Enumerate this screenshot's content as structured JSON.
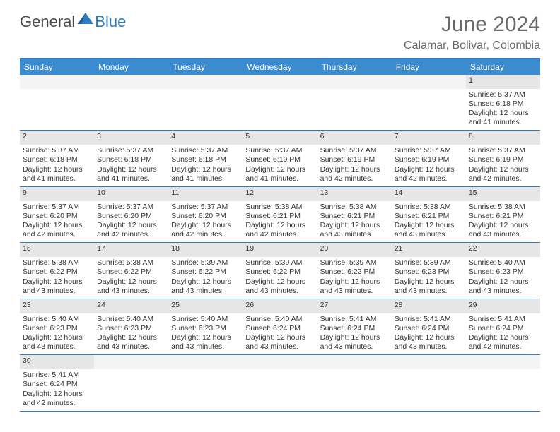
{
  "logo": {
    "part1": "General",
    "part2": "Blue",
    "tri_color": "#2f7cc0"
  },
  "title": "June 2024",
  "location": "Calamar, Bolivar, Colombia",
  "colors": {
    "header_bar": "#3a8bd0",
    "border": "#2f7cc0",
    "day_number_bg": "#e6e6e6",
    "text_muted": "#6a6a6a"
  },
  "weekdays": [
    "Sunday",
    "Monday",
    "Tuesday",
    "Wednesday",
    "Thursday",
    "Friday",
    "Saturday"
  ],
  "weeks": [
    [
      {
        "n": "",
        "sr": "",
        "ss": "",
        "dl": ""
      },
      {
        "n": "",
        "sr": "",
        "ss": "",
        "dl": ""
      },
      {
        "n": "",
        "sr": "",
        "ss": "",
        "dl": ""
      },
      {
        "n": "",
        "sr": "",
        "ss": "",
        "dl": ""
      },
      {
        "n": "",
        "sr": "",
        "ss": "",
        "dl": ""
      },
      {
        "n": "",
        "sr": "",
        "ss": "",
        "dl": ""
      },
      {
        "n": "1",
        "sr": "Sunrise: 5:37 AM",
        "ss": "Sunset: 6:18 PM",
        "dl": "Daylight: 12 hours and 41 minutes."
      }
    ],
    [
      {
        "n": "2",
        "sr": "Sunrise: 5:37 AM",
        "ss": "Sunset: 6:18 PM",
        "dl": "Daylight: 12 hours and 41 minutes."
      },
      {
        "n": "3",
        "sr": "Sunrise: 5:37 AM",
        "ss": "Sunset: 6:18 PM",
        "dl": "Daylight: 12 hours and 41 minutes."
      },
      {
        "n": "4",
        "sr": "Sunrise: 5:37 AM",
        "ss": "Sunset: 6:18 PM",
        "dl": "Daylight: 12 hours and 41 minutes."
      },
      {
        "n": "5",
        "sr": "Sunrise: 5:37 AM",
        "ss": "Sunset: 6:19 PM",
        "dl": "Daylight: 12 hours and 41 minutes."
      },
      {
        "n": "6",
        "sr": "Sunrise: 5:37 AM",
        "ss": "Sunset: 6:19 PM",
        "dl": "Daylight: 12 hours and 42 minutes."
      },
      {
        "n": "7",
        "sr": "Sunrise: 5:37 AM",
        "ss": "Sunset: 6:19 PM",
        "dl": "Daylight: 12 hours and 42 minutes."
      },
      {
        "n": "8",
        "sr": "Sunrise: 5:37 AM",
        "ss": "Sunset: 6:19 PM",
        "dl": "Daylight: 12 hours and 42 minutes."
      }
    ],
    [
      {
        "n": "9",
        "sr": "Sunrise: 5:37 AM",
        "ss": "Sunset: 6:20 PM",
        "dl": "Daylight: 12 hours and 42 minutes."
      },
      {
        "n": "10",
        "sr": "Sunrise: 5:37 AM",
        "ss": "Sunset: 6:20 PM",
        "dl": "Daylight: 12 hours and 42 minutes."
      },
      {
        "n": "11",
        "sr": "Sunrise: 5:37 AM",
        "ss": "Sunset: 6:20 PM",
        "dl": "Daylight: 12 hours and 42 minutes."
      },
      {
        "n": "12",
        "sr": "Sunrise: 5:38 AM",
        "ss": "Sunset: 6:21 PM",
        "dl": "Daylight: 12 hours and 42 minutes."
      },
      {
        "n": "13",
        "sr": "Sunrise: 5:38 AM",
        "ss": "Sunset: 6:21 PM",
        "dl": "Daylight: 12 hours and 43 minutes."
      },
      {
        "n": "14",
        "sr": "Sunrise: 5:38 AM",
        "ss": "Sunset: 6:21 PM",
        "dl": "Daylight: 12 hours and 43 minutes."
      },
      {
        "n": "15",
        "sr": "Sunrise: 5:38 AM",
        "ss": "Sunset: 6:21 PM",
        "dl": "Daylight: 12 hours and 43 minutes."
      }
    ],
    [
      {
        "n": "16",
        "sr": "Sunrise: 5:38 AM",
        "ss": "Sunset: 6:22 PM",
        "dl": "Daylight: 12 hours and 43 minutes."
      },
      {
        "n": "17",
        "sr": "Sunrise: 5:38 AM",
        "ss": "Sunset: 6:22 PM",
        "dl": "Daylight: 12 hours and 43 minutes."
      },
      {
        "n": "18",
        "sr": "Sunrise: 5:39 AM",
        "ss": "Sunset: 6:22 PM",
        "dl": "Daylight: 12 hours and 43 minutes."
      },
      {
        "n": "19",
        "sr": "Sunrise: 5:39 AM",
        "ss": "Sunset: 6:22 PM",
        "dl": "Daylight: 12 hours and 43 minutes."
      },
      {
        "n": "20",
        "sr": "Sunrise: 5:39 AM",
        "ss": "Sunset: 6:22 PM",
        "dl": "Daylight: 12 hours and 43 minutes."
      },
      {
        "n": "21",
        "sr": "Sunrise: 5:39 AM",
        "ss": "Sunset: 6:23 PM",
        "dl": "Daylight: 12 hours and 43 minutes."
      },
      {
        "n": "22",
        "sr": "Sunrise: 5:40 AM",
        "ss": "Sunset: 6:23 PM",
        "dl": "Daylight: 12 hours and 43 minutes."
      }
    ],
    [
      {
        "n": "23",
        "sr": "Sunrise: 5:40 AM",
        "ss": "Sunset: 6:23 PM",
        "dl": "Daylight: 12 hours and 43 minutes."
      },
      {
        "n": "24",
        "sr": "Sunrise: 5:40 AM",
        "ss": "Sunset: 6:23 PM",
        "dl": "Daylight: 12 hours and 43 minutes."
      },
      {
        "n": "25",
        "sr": "Sunrise: 5:40 AM",
        "ss": "Sunset: 6:23 PM",
        "dl": "Daylight: 12 hours and 43 minutes."
      },
      {
        "n": "26",
        "sr": "Sunrise: 5:40 AM",
        "ss": "Sunset: 6:24 PM",
        "dl": "Daylight: 12 hours and 43 minutes."
      },
      {
        "n": "27",
        "sr": "Sunrise: 5:41 AM",
        "ss": "Sunset: 6:24 PM",
        "dl": "Daylight: 12 hours and 43 minutes."
      },
      {
        "n": "28",
        "sr": "Sunrise: 5:41 AM",
        "ss": "Sunset: 6:24 PM",
        "dl": "Daylight: 12 hours and 43 minutes."
      },
      {
        "n": "29",
        "sr": "Sunrise: 5:41 AM",
        "ss": "Sunset: 6:24 PM",
        "dl": "Daylight: 12 hours and 42 minutes."
      }
    ],
    [
      {
        "n": "30",
        "sr": "Sunrise: 5:41 AM",
        "ss": "Sunset: 6:24 PM",
        "dl": "Daylight: 12 hours and 42 minutes."
      },
      {
        "n": "",
        "sr": "",
        "ss": "",
        "dl": ""
      },
      {
        "n": "",
        "sr": "",
        "ss": "",
        "dl": ""
      },
      {
        "n": "",
        "sr": "",
        "ss": "",
        "dl": ""
      },
      {
        "n": "",
        "sr": "",
        "ss": "",
        "dl": ""
      },
      {
        "n": "",
        "sr": "",
        "ss": "",
        "dl": ""
      },
      {
        "n": "",
        "sr": "",
        "ss": "",
        "dl": ""
      }
    ]
  ]
}
